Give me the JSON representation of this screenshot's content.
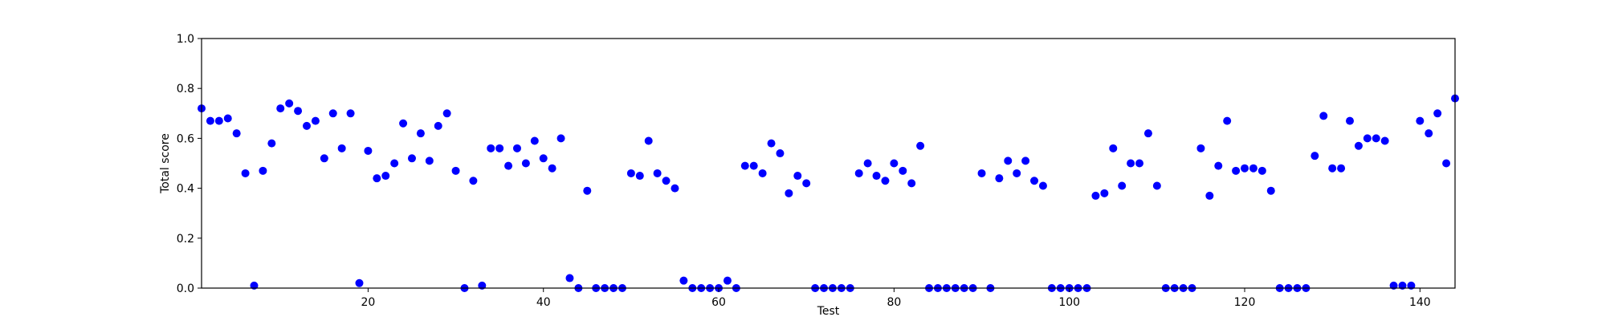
{
  "chart_data": {
    "type": "scatter",
    "xlabel": "Test",
    "ylabel": "Total score",
    "xlim": [
      1,
      144
    ],
    "ylim": [
      0,
      1
    ],
    "xticks": [
      20,
      40,
      60,
      80,
      100,
      120,
      140
    ],
    "yticks": [
      0.0,
      0.2,
      0.4,
      0.6,
      0.8,
      1.0
    ],
    "ytick_labels": [
      "0.0",
      "0.2",
      "0.4",
      "0.6",
      "0.8",
      "1.0"
    ],
    "grid": false,
    "marker_color": "#0000ff",
    "series": [
      {
        "x": [
          1,
          2,
          3,
          4,
          5,
          6,
          7,
          8,
          9,
          10,
          11,
          12,
          13,
          14,
          15,
          16,
          17,
          18,
          19,
          20,
          21,
          22,
          23,
          24,
          25,
          26,
          27,
          28,
          29,
          30,
          31,
          32,
          33,
          34,
          35,
          36,
          37,
          38,
          39,
          40,
          41,
          42,
          43,
          44,
          45,
          46,
          47,
          48,
          49,
          50,
          51,
          52,
          53,
          54,
          55,
          56,
          57,
          58,
          59,
          60,
          61,
          62,
          63,
          64,
          65,
          66,
          67,
          68,
          69,
          70,
          71,
          72,
          73,
          74,
          75,
          76,
          77,
          78,
          79,
          80,
          81,
          82,
          83,
          84,
          85,
          86,
          87,
          88,
          89,
          90,
          91,
          92,
          93,
          94,
          95,
          96,
          97,
          98,
          99,
          100,
          101,
          102,
          103,
          104,
          105,
          106,
          107,
          108,
          109,
          110,
          111,
          112,
          113,
          114,
          115,
          116,
          117,
          118,
          119,
          120,
          121,
          122,
          123,
          124,
          125,
          126,
          127,
          128,
          129,
          130,
          131,
          132,
          133,
          134,
          135,
          136,
          137,
          138,
          139,
          140,
          141,
          142,
          143,
          144
        ],
        "y": [
          0.72,
          0.67,
          0.67,
          0.68,
          0.62,
          0.46,
          0.01,
          0.47,
          0.58,
          0.72,
          0.74,
          0.71,
          0.65,
          0.67,
          0.52,
          0.7,
          0.56,
          0.7,
          0.02,
          0.55,
          0.44,
          0.45,
          0.5,
          0.66,
          0.52,
          0.62,
          0.51,
          0.65,
          0.7,
          0.47,
          0.0,
          0.43,
          0.01,
          0.56,
          0.56,
          0.49,
          0.56,
          0.5,
          0.59,
          0.52,
          0.48,
          0.6,
          0.04,
          0.0,
          0.39,
          0.0,
          0.0,
          0.0,
          0.0,
          0.46,
          0.45,
          0.59,
          0.46,
          0.43,
          0.4,
          0.03,
          0.0,
          0.0,
          0.0,
          0.0,
          0.03,
          0.0,
          0.49,
          0.49,
          0.46,
          0.58,
          0.54,
          0.38,
          0.45,
          0.42,
          0.0,
          0.0,
          0.0,
          0.0,
          0.0,
          0.46,
          0.5,
          0.45,
          0.43,
          0.5,
          0.47,
          0.42,
          0.57,
          0.0,
          0.0,
          0.0,
          0.0,
          0.0,
          0.0,
          0.46,
          0.0,
          0.44,
          0.51,
          0.46,
          0.51,
          0.43,
          0.41,
          0.0,
          0.0,
          0.0,
          0.0,
          0.0,
          0.37,
          0.38,
          0.56,
          0.41,
          0.5,
          0.5,
          0.62,
          0.41,
          0.0,
          0.0,
          0.0,
          0.0,
          0.56,
          0.37,
          0.49,
          0.67,
          0.47,
          0.48,
          0.48,
          0.47,
          0.39,
          0.0,
          0.0,
          0.0,
          0.0,
          0.53,
          0.69,
          0.48,
          0.48,
          0.67,
          0.57,
          0.6,
          0.6,
          0.59,
          0.01,
          0.01,
          0.01,
          0.67,
          0.62,
          0.7,
          0.5,
          0.76
        ]
      }
    ]
  }
}
